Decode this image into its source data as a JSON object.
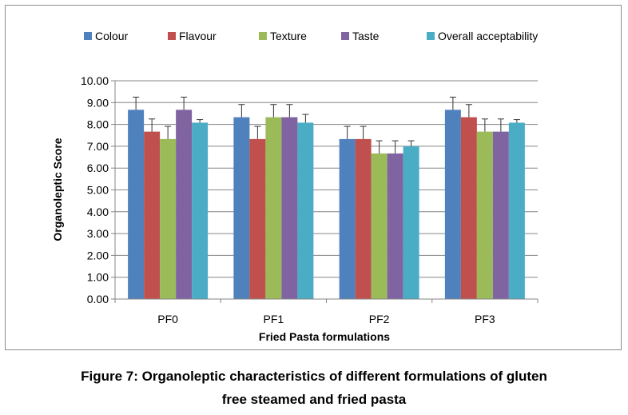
{
  "chart_data": {
    "type": "bar",
    "title": "",
    "xlabel": "Fried Pasta formulations",
    "ylabel": "Organoleptic Score",
    "ylim": [
      0,
      10
    ],
    "yticks": [
      "0.00",
      "1.00",
      "2.00",
      "3.00",
      "4.00",
      "5.00",
      "6.00",
      "7.00",
      "8.00",
      "9.00",
      "10.00"
    ],
    "grid": true,
    "legend_position": "top",
    "categories": [
      "PF0",
      "PF1",
      "PF2",
      "PF3"
    ],
    "series": [
      {
        "name": "Colour",
        "color": "#4F81BD",
        "values": [
          8.67,
          8.33,
          7.33,
          8.67
        ],
        "errors": [
          0.58,
          0.58,
          0.58,
          0.58
        ]
      },
      {
        "name": "Flavour",
        "color": "#C0504D",
        "values": [
          7.67,
          7.33,
          7.33,
          8.33
        ],
        "errors": [
          0.58,
          0.58,
          0.58,
          0.58
        ]
      },
      {
        "name": "Texture",
        "color": "#9BBB59",
        "values": [
          7.33,
          8.33,
          6.67,
          7.67
        ],
        "errors": [
          0.58,
          0.58,
          0.58,
          0.58
        ]
      },
      {
        "name": "Taste",
        "color": "#8064A2",
        "values": [
          8.67,
          8.33,
          6.67,
          7.67
        ],
        "errors": [
          0.58,
          0.58,
          0.58,
          0.58
        ]
      },
      {
        "name": "Overall acceptability",
        "color": "#4BACC6",
        "values": [
          8.08,
          8.08,
          7.0,
          8.08
        ],
        "errors": [
          0.14,
          0.38,
          0.25,
          0.14
        ]
      }
    ]
  },
  "caption": {
    "line1": "Figure 7: Organoleptic characteristics of different formulations of gluten",
    "line2": "free steamed and fried pasta"
  }
}
